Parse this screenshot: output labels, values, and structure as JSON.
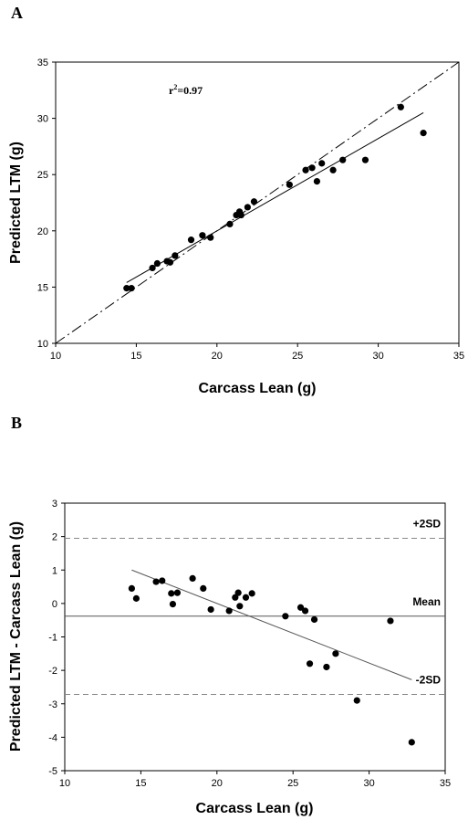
{
  "chart_data": [
    {
      "panel": "A",
      "type": "scatter",
      "xlabel": "Carcass Lean (g)",
      "ylabel": "Predicted LTM (g)",
      "xlim": [
        10,
        35
      ],
      "ylim": [
        10,
        35
      ],
      "xticks": [
        "10",
        "15",
        "20",
        "25",
        "30",
        "35"
      ],
      "yticks": [
        "10",
        "15",
        "20",
        "25",
        "30",
        "35"
      ],
      "annotation": {
        "base": "r",
        "sup": "2",
        "rest": "=0.97"
      },
      "grid": false,
      "points": [
        {
          "x": 14.4,
          "y": 14.9
        },
        {
          "x": 14.7,
          "y": 14.9
        },
        {
          "x": 16.0,
          "y": 16.7
        },
        {
          "x": 16.3,
          "y": 17.1
        },
        {
          "x": 16.9,
          "y": 17.3
        },
        {
          "x": 17.1,
          "y": 17.2
        },
        {
          "x": 17.4,
          "y": 17.8
        },
        {
          "x": 18.4,
          "y": 19.2
        },
        {
          "x": 19.1,
          "y": 19.6
        },
        {
          "x": 19.6,
          "y": 19.4
        },
        {
          "x": 20.8,
          "y": 20.6
        },
        {
          "x": 21.2,
          "y": 21.4
        },
        {
          "x": 21.4,
          "y": 21.7
        },
        {
          "x": 21.5,
          "y": 21.4
        },
        {
          "x": 21.9,
          "y": 22.1
        },
        {
          "x": 22.3,
          "y": 22.6
        },
        {
          "x": 24.5,
          "y": 24.1
        },
        {
          "x": 25.5,
          "y": 25.4
        },
        {
          "x": 25.9,
          "y": 25.6
        },
        {
          "x": 26.2,
          "y": 24.4
        },
        {
          "x": 26.5,
          "y": 26.0
        },
        {
          "x": 27.2,
          "y": 25.4
        },
        {
          "x": 27.8,
          "y": 26.3
        },
        {
          "x": 29.2,
          "y": 26.3
        },
        {
          "x": 31.4,
          "y": 31.0
        },
        {
          "x": 32.8,
          "y": 28.7
        }
      ],
      "identity_line": {
        "from": [
          10,
          10
        ],
        "to": [
          35,
          35
        ],
        "style": "dash-dot"
      },
      "regression_line": {
        "from": [
          14.4,
          15.4
        ],
        "to": [
          32.8,
          30.5
        ],
        "style": "solid"
      }
    },
    {
      "panel": "B",
      "type": "scatter",
      "xlabel": "Carcass Lean (g)",
      "ylabel": "Predicted LTM - Carcass Lean (g)",
      "xlim": [
        10,
        35
      ],
      "ylim": [
        -5,
        3
      ],
      "xticks": [
        "10",
        "15",
        "20",
        "25",
        "30",
        "35"
      ],
      "yticks": [
        "-5",
        "-4",
        "-3",
        "-2",
        "-1",
        "0",
        "1",
        "2",
        "3"
      ],
      "grid": false,
      "points": [
        {
          "x": 14.4,
          "y": 0.45
        },
        {
          "x": 14.7,
          "y": 0.15
        },
        {
          "x": 16.0,
          "y": 0.65
        },
        {
          "x": 16.4,
          "y": 0.68
        },
        {
          "x": 17.0,
          "y": 0.3
        },
        {
          "x": 17.1,
          "y": -0.02
        },
        {
          "x": 17.4,
          "y": 0.32
        },
        {
          "x": 18.4,
          "y": 0.75
        },
        {
          "x": 19.1,
          "y": 0.45
        },
        {
          "x": 19.6,
          "y": -0.18
        },
        {
          "x": 20.8,
          "y": -0.22
        },
        {
          "x": 21.2,
          "y": 0.18
        },
        {
          "x": 21.4,
          "y": 0.32
        },
        {
          "x": 21.5,
          "y": -0.08
        },
        {
          "x": 21.9,
          "y": 0.18
        },
        {
          "x": 22.3,
          "y": 0.3
        },
        {
          "x": 24.5,
          "y": -0.38
        },
        {
          "x": 25.5,
          "y": -0.12
        },
        {
          "x": 25.8,
          "y": -0.22
        },
        {
          "x": 26.1,
          "y": -1.8
        },
        {
          "x": 26.4,
          "y": -0.48
        },
        {
          "x": 27.2,
          "y": -1.9
        },
        {
          "x": 27.8,
          "y": -1.5
        },
        {
          "x": 29.2,
          "y": -2.9
        },
        {
          "x": 31.4,
          "y": -0.52
        },
        {
          "x": 32.8,
          "y": -4.15
        }
      ],
      "reference_lines": [
        {
          "label": "+2SD",
          "y": 1.95,
          "style": "dashed"
        },
        {
          "label": "Mean",
          "y": -0.38,
          "style": "solid"
        },
        {
          "label": "-2SD",
          "y": -2.72,
          "style": "dashed"
        }
      ],
      "regression_line": {
        "from": [
          14.4,
          1.0
        ],
        "to": [
          32.8,
          -2.28
        ],
        "style": "solid"
      }
    }
  ]
}
